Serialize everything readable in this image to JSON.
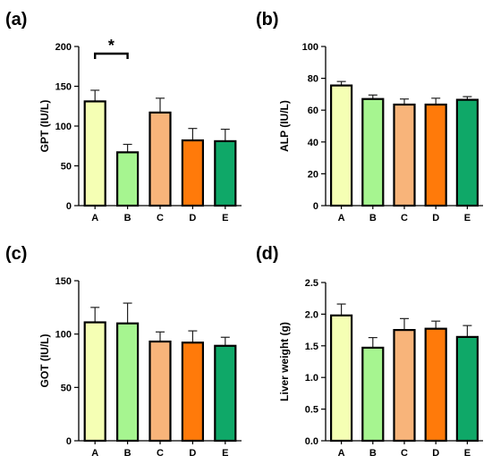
{
  "colors": {
    "A": "#f5ffb4",
    "B": "#a6f590",
    "C": "#f8b47a",
    "D": "#ff7a0a",
    "E": "#0fa868",
    "outline": "#000000"
  },
  "chart_data": [
    {
      "type": "bar",
      "panel_label": "(a)",
      "ylabel": "GPT (IU/L)",
      "categories": [
        "A",
        "B",
        "C",
        "D",
        "E"
      ],
      "values": [
        131,
        67,
        117,
        82,
        81
      ],
      "errors": [
        14,
        10,
        18,
        15,
        15
      ],
      "ylim": [
        0,
        200
      ],
      "yticks": [
        0,
        50,
        100,
        150,
        200
      ],
      "annotations": [
        {
          "type": "significance",
          "from": "A",
          "to": "B",
          "label": "*"
        }
      ]
    },
    {
      "type": "bar",
      "panel_label": "(b)",
      "ylabel": "ALP (IU/L)",
      "categories": [
        "A",
        "B",
        "C",
        "D",
        "E"
      ],
      "values": [
        75.5,
        67,
        63.5,
        63.5,
        66.5
      ],
      "errors": [
        2.5,
        2.5,
        3.5,
        4,
        2
      ],
      "ylim": [
        0,
        100
      ],
      "yticks": [
        0,
        20,
        40,
        60,
        80,
        100
      ],
      "annotations": []
    },
    {
      "type": "bar",
      "panel_label": "(c)",
      "ylabel": "GOT (IU/L)",
      "categories": [
        "A",
        "B",
        "C",
        "D",
        "E"
      ],
      "values": [
        111,
        110,
        93,
        92,
        89
      ],
      "errors": [
        14,
        19,
        9,
        11,
        8
      ],
      "ylim": [
        0,
        150
      ],
      "yticks": [
        0,
        50,
        100,
        150
      ],
      "annotations": []
    },
    {
      "type": "bar",
      "panel_label": "(d)",
      "ylabel": "Liver weight (g)",
      "categories": [
        "A",
        "B",
        "C",
        "D",
        "E"
      ],
      "values": [
        1.98,
        1.47,
        1.75,
        1.77,
        1.64
      ],
      "errors": [
        0.18,
        0.16,
        0.18,
        0.12,
        0.18
      ],
      "ylim": [
        0,
        2.5
      ],
      "yticks": [
        0.0,
        0.5,
        1.0,
        1.5,
        2.0,
        2.5
      ],
      "ytick_labels": [
        "0.0",
        "0.5",
        "1.0",
        "1.5",
        "2.0",
        "2.5"
      ],
      "annotations": []
    }
  ]
}
